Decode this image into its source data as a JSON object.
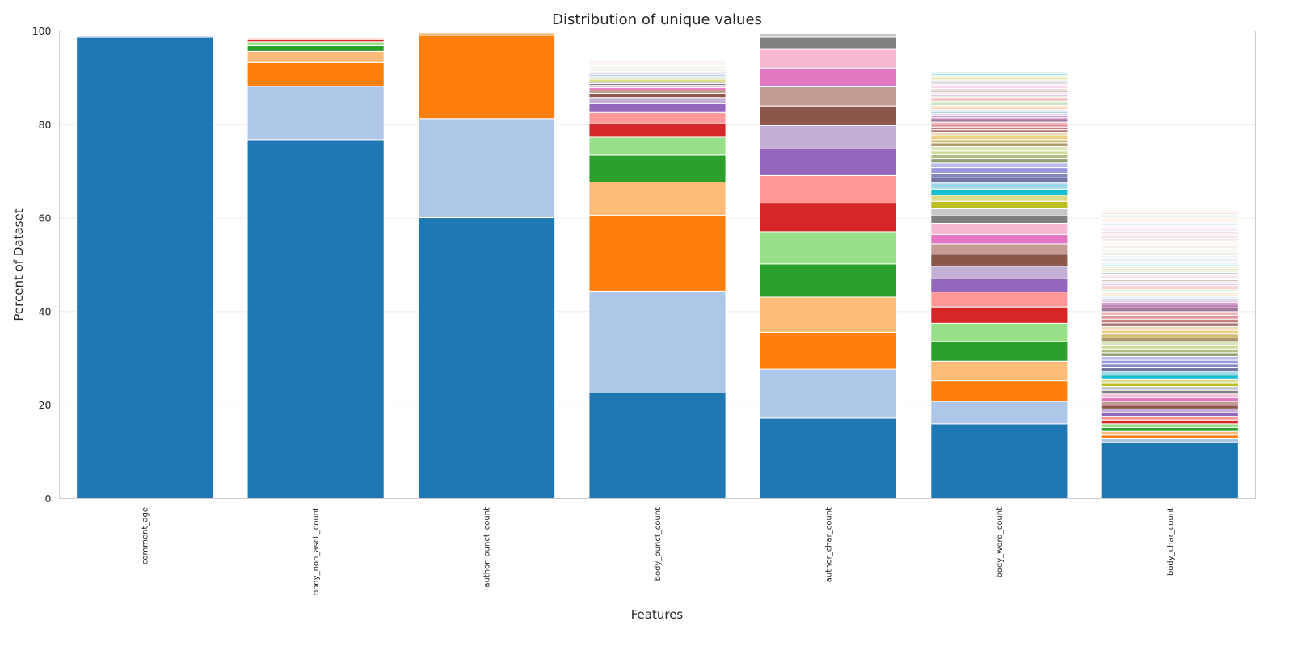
{
  "chart_data": {
    "type": "bar",
    "stacked": true,
    "title": "Distribution of unique values",
    "xlabel": "Features",
    "ylabel": "Percent of Dataset",
    "ylim": [
      0,
      100
    ],
    "yticks": [
      "0",
      "20",
      "40",
      "60",
      "80",
      "100"
    ],
    "grid": true,
    "legend": "none",
    "categories": [
      "comment_age",
      "body_non_ascii_count",
      "author_punct_count",
      "body_punct_count",
      "author_char_count",
      "body_word_count",
      "body_char_count"
    ],
    "stacks": [
      [
        98.7,
        0.4
      ],
      [
        76.8,
        11.4,
        5.1,
        2.4,
        1.2,
        0.8,
        0.5,
        0.3
      ],
      [
        60.1,
        21.2,
        17.7,
        0.6
      ],
      [
        22.7,
        21.7,
        16.2,
        7.1,
        5.8,
        3.8,
        2.9,
        2.4,
        1.9,
        1.3,
        0.9,
        0.7,
        0.5,
        0.5,
        0.4,
        0.4,
        0.35,
        0.35,
        0.2,
        0.3,
        0.25,
        0.25,
        0.25,
        0.25,
        0.2,
        0.2,
        0.2,
        0.2,
        0.2,
        0.2,
        0.2,
        0.2,
        0.2,
        0.2,
        0.2,
        0.15,
        0.15,
        0.15,
        0.15,
        0.15
      ],
      [
        17.2,
        10.5,
        7.9,
        7.5,
        7.1,
        6.9,
        6.1,
        5.9,
        5.7,
        5.0,
        4.2,
        4.1,
        4.0,
        4.0,
        2.6,
        0.8
      ],
      [
        16.0,
        4.8,
        4.4,
        4.2,
        4.2,
        3.9,
        3.5,
        3.2,
        2.8,
        2.7,
        2.6,
        2.2,
        2.0,
        2.4,
        1.6,
        1.5,
        1.6,
        1.3,
        1.3,
        1.3,
        1.1,
        1.0,
        1.2,
        1.0,
        0.9,
        0.9,
        0.8,
        0.9,
        0.8,
        0.7,
        0.8,
        0.7,
        0.6,
        0.6,
        0.6,
        0.45,
        0.45,
        0.45,
        0.45,
        0.45,
        0.45,
        0.45,
        0.45,
        0.45,
        0.45,
        0.45,
        0.45,
        0.45,
        0.45,
        0.45,
        0.45,
        0.45,
        0.45,
        0.45,
        0.45,
        0.45,
        0.45,
        0.45,
        0.45,
        0.45
      ],
      [
        12.0,
        0.8,
        0.8,
        0.8,
        0.8,
        0.8,
        0.8,
        0.8,
        0.8,
        0.8,
        0.8,
        0.8,
        0.8,
        0.8,
        0.8,
        0.8,
        0.8,
        0.8,
        0.8,
        0.8,
        0.8,
        0.8,
        0.8,
        0.8,
        0.8,
        0.8,
        0.8,
        0.8,
        0.8,
        0.8,
        0.8,
        0.8,
        0.8,
        0.8,
        0.8,
        0.8,
        0.8,
        0.8,
        0.4,
        0.4,
        0.4,
        0.4,
        0.4,
        0.4,
        0.4,
        0.4,
        0.4,
        0.4,
        0.4,
        0.4,
        0.4,
        0.4,
        0.4,
        0.4,
        0.4,
        0.4,
        0.4,
        0.4,
        0.4,
        0.4,
        0.4,
        0.4,
        0.4,
        0.4,
        0.4,
        0.4,
        0.4,
        0.4,
        0.4,
        0.4,
        0.4,
        0.4,
        0.4,
        0.4,
        0.4,
        0.4,
        0.4,
        0.4,
        0.4,
        0.4,
        0.4,
        0.4,
        0.4,
        0.4,
        0.4,
        0.4,
        0.4,
        0.4
      ]
    ],
    "palette": [
      "#1f77b4",
      "#aec7e8",
      "#ff7f0e",
      "#ffbb78",
      "#2ca02c",
      "#98df8a",
      "#d62728",
      "#ff9896",
      "#9467bd",
      "#c5b0d5",
      "#8c564b",
      "#c49c94",
      "#e377c2",
      "#f7b6d2",
      "#7f7f7f",
      "#c7c7c7",
      "#bcbd22",
      "#dbdb8d",
      "#17becf",
      "#9edae5",
      "#393b79",
      "#5254a3",
      "#6b6ecf",
      "#9c9ede",
      "#637939",
      "#8ca252",
      "#b5cf6b",
      "#cedb9c",
      "#8c6d31",
      "#bd9e39",
      "#e7ba52",
      "#e7cb94",
      "#843c39",
      "#ad494a",
      "#d6616b",
      "#e7969c",
      "#7b4173",
      "#a55194",
      "#ce6dbd",
      "#de9ed6"
    ]
  }
}
